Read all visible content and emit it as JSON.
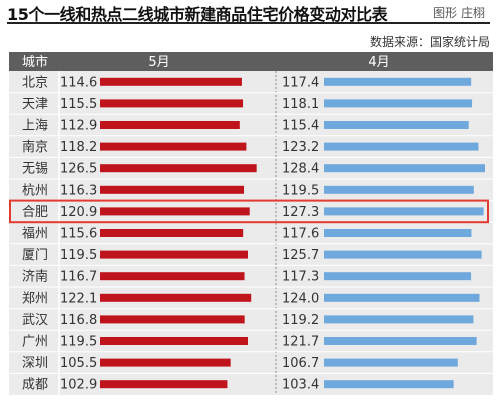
{
  "header": {
    "title": "15个一线和热点二线城市新建商品住宅价格变动对比表",
    "credit": "图形 庄栩",
    "source": "数据来源：国家统计局"
  },
  "colors": {
    "header_bg": "#5e5e5e",
    "may_bar": "#c0141c",
    "april_bar": "#6fa8dc",
    "highlight": "#e23b32"
  },
  "chart_data": {
    "type": "bar",
    "orientation": "horizontal",
    "category_header": "城市",
    "highlight_category": "合肥",
    "categories": [
      "北京",
      "天津",
      "上海",
      "南京",
      "无锡",
      "杭州",
      "合肥",
      "福州",
      "厦门",
      "济南",
      "郑州",
      "武汉",
      "广州",
      "深圳",
      "成都"
    ],
    "series": [
      {
        "name": "5月",
        "values": [
          114.6,
          115.5,
          112.9,
          118.2,
          126.5,
          116.3,
          120.9,
          115.6,
          119.5,
          116.7,
          122.1,
          116.8,
          119.5,
          105.5,
          102.9
        ]
      },
      {
        "name": "4月",
        "values": [
          117.4,
          118.1,
          115.4,
          123.2,
          128.4,
          119.5,
          127.3,
          117.6,
          125.7,
          117.3,
          124.0,
          119.2,
          121.7,
          106.7,
          103.4
        ]
      }
    ]
  }
}
